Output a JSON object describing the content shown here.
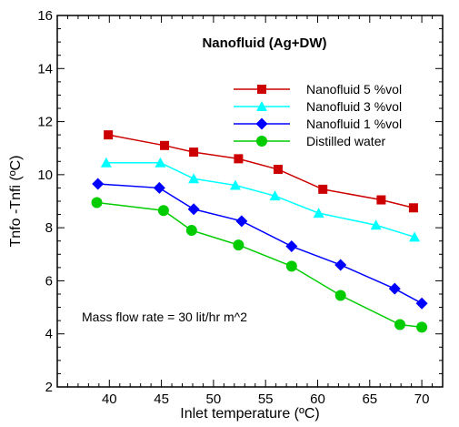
{
  "chart_data": {
    "type": "line",
    "title": "Nanofluid (Ag+DW)",
    "xlabel": "Inlet temperature  (ºC)",
    "ylabel": "Tnfo -Tnfi  (ºC)",
    "xlim": [
      35,
      72
    ],
    "ylim": [
      2,
      16
    ],
    "xticks": [
      40,
      45,
      50,
      55,
      60,
      65,
      70
    ],
    "yticks": [
      2,
      4,
      6,
      8,
      10,
      12,
      14,
      16
    ],
    "grid": false,
    "legend_position": "top-right",
    "annotation": "Mass flow rate = 30 lit/hr m^2",
    "series": [
      {
        "name": "Nanofluid 5 %vol",
        "color": "#cc0000",
        "marker": "square",
        "x": [
          39.9,
          45.3,
          48.1,
          52.4,
          56.2,
          60.5,
          66.1,
          69.2
        ],
        "y": [
          11.5,
          11.1,
          10.85,
          10.6,
          10.2,
          9.45,
          9.05,
          8.75
        ]
      },
      {
        "name": "Nanofluid 3 %vol",
        "color": "#00ffff",
        "marker": "triangle",
        "x": [
          39.7,
          44.9,
          48.1,
          52.1,
          55.9,
          60.1,
          65.6,
          69.3
        ],
        "y": [
          10.45,
          10.45,
          9.85,
          9.6,
          9.2,
          8.55,
          8.1,
          7.65
        ]
      },
      {
        "name": "Nanofluid 1 %vol",
        "color": "#0000ff",
        "marker": "diamond",
        "x": [
          38.9,
          44.8,
          48.1,
          52.7,
          57.5,
          62.2,
          67.4,
          70.0
        ],
        "y": [
          9.65,
          9.5,
          8.7,
          8.25,
          7.3,
          6.6,
          5.7,
          5.15
        ]
      },
      {
        "name": "Distilled water",
        "color": "#00cc00",
        "marker": "circle",
        "x": [
          38.8,
          45.2,
          47.9,
          52.4,
          57.5,
          62.2,
          67.9,
          70.0
        ],
        "y": [
          8.95,
          8.65,
          7.9,
          7.35,
          6.55,
          5.45,
          4.35,
          4.25
        ]
      }
    ]
  }
}
